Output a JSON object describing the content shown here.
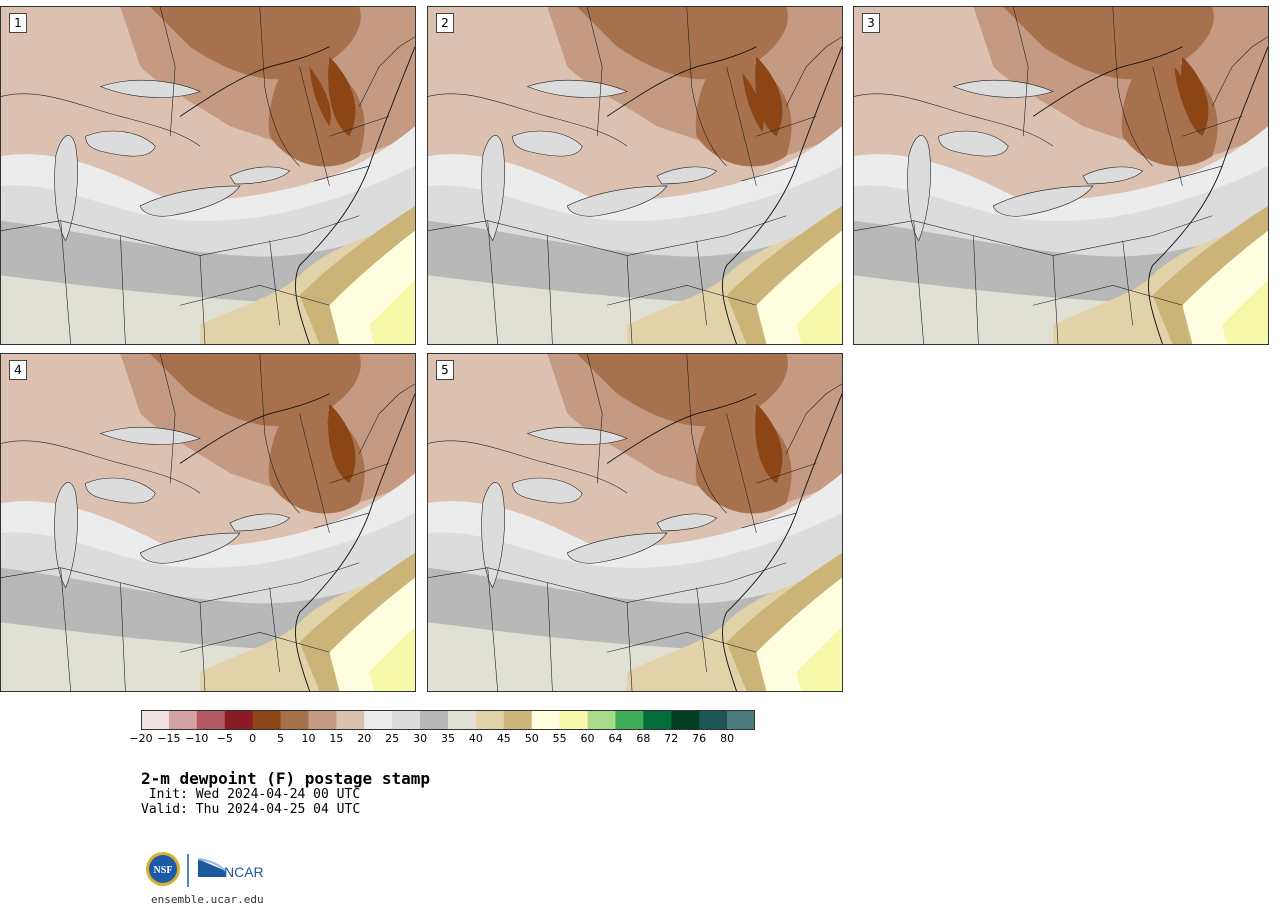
{
  "panels": [
    {
      "label": "1"
    },
    {
      "label": "2"
    },
    {
      "label": "3"
    },
    {
      "label": "4"
    },
    {
      "label": "5"
    }
  ],
  "colorbar": {
    "ticks": [
      "−20",
      "−15",
      "−10",
      "−5",
      "0",
      "5",
      "10",
      "15",
      "20",
      "25",
      "30",
      "35",
      "40",
      "45",
      "50",
      "55",
      "60",
      "64",
      "68",
      "72",
      "76",
      "80"
    ],
    "colors": [
      "#f2e4e4",
      "#d4a0a4",
      "#b05a60",
      "#8b1b22",
      "#8c4514",
      "#a8714e",
      "#c49a82",
      "#dcc0b0",
      "#ececec",
      "#dcdcdc",
      "#b8b8b8",
      "#e0e0d4",
      "#e2d2aa",
      "#ccb478",
      "#ffffe0",
      "#f4f8a8",
      "#a8dc8c",
      "#40ac58",
      "#006e38",
      "#003e22",
      "#1c5458",
      "#4c7c80"
    ]
  },
  "title": "2-m dewpoint (F) postage stamp",
  "init_line": " Init: Wed 2024-04-24 00 UTC",
  "valid_line": "Valid: Thu 2024-04-25 04 UTC",
  "logos": {
    "nsf": "NSF",
    "ncar": "NCAR",
    "colors": {
      "nsf_blue": "#1a5aa6",
      "nsf_gold": "#d8b030",
      "ncar_blue": "#1f5aa0"
    }
  },
  "website": "ensemble.ucar.edu"
}
